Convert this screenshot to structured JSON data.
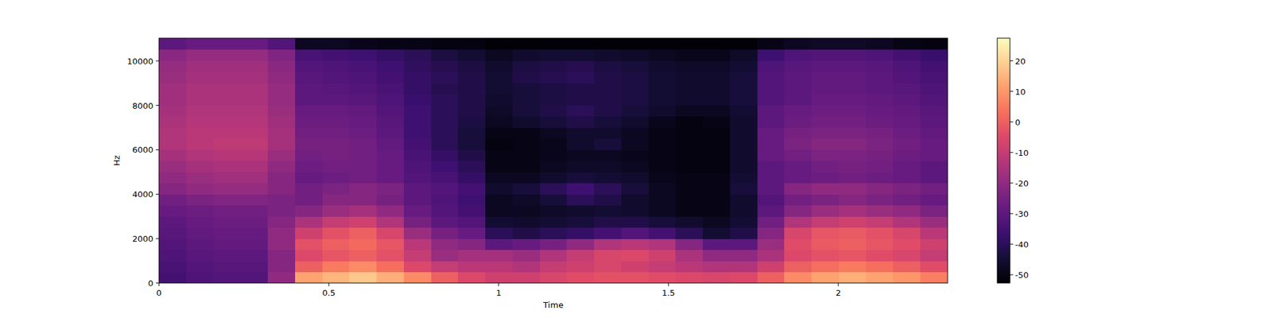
{
  "chart_data": {
    "type": "heatmap",
    "x_label": "Time",
    "y_label": "Hz",
    "xlim": [
      0,
      2.322
    ],
    "ylim": [
      0,
      11025
    ],
    "xticks": [
      0,
      0.5,
      1,
      1.5,
      2
    ],
    "yticks": [
      0,
      2000,
      4000,
      6000,
      8000,
      10000
    ],
    "color_range": [
      -52.7,
      27.4
    ],
    "color_ticks": [
      -50,
      -40,
      -30,
      -20,
      -10,
      0,
      10,
      20
    ],
    "cells": [
      [
        -35,
        -33,
        -32,
        -32,
        -20,
        12,
        15,
        18,
        14,
        8,
        0,
        -5,
        -8,
        -8,
        -6,
        -4,
        -3,
        -3,
        -4,
        -5,
        -6,
        -5,
        0,
        8,
        12,
        14,
        12,
        10,
        6
      ],
      [
        -34,
        -32,
        -31,
        -31,
        -22,
        0,
        5,
        8,
        3,
        -5,
        -10,
        -12,
        -12,
        -14,
        -10,
        -8,
        -6,
        -8,
        -10,
        -12,
        -14,
        -14,
        -8,
        0,
        3,
        5,
        3,
        0,
        -4
      ],
      [
        -33,
        -31,
        -30,
        -30,
        -22,
        -5,
        -2,
        0,
        -3,
        -10,
        -18,
        -16,
        -16,
        -18,
        -14,
        -10,
        -6,
        -5,
        -8,
        -15,
        -20,
        -20,
        -15,
        -5,
        -3,
        -2,
        -4,
        -6,
        -10
      ],
      [
        -32,
        -30,
        -29,
        -29,
        -20,
        -3,
        0,
        2,
        -2,
        -12,
        -20,
        -22,
        -30,
        -28,
        -25,
        -20,
        -14,
        -12,
        -14,
        -22,
        -30,
        -30,
        -18,
        -4,
        -1,
        0,
        -2,
        -4,
        -8
      ],
      [
        -31,
        -29,
        -28,
        -28,
        -20,
        -8,
        -3,
        0,
        -6,
        -18,
        -25,
        -28,
        -40,
        -42,
        -40,
        -38,
        -35,
        -32,
        -35,
        -40,
        -45,
        -42,
        -22,
        -6,
        -2,
        -1,
        -3,
        -6,
        -12
      ],
      [
        -30,
        -28,
        -27,
        -27,
        -22,
        -15,
        -10,
        -8,
        -14,
        -25,
        -30,
        -32,
        -45,
        -46,
        -45,
        -44,
        -42,
        -42,
        -44,
        -46,
        -48,
        -45,
        -26,
        -14,
        -10,
        -8,
        -10,
        -14,
        -18
      ],
      [
        -28,
        -27,
        -26,
        -26,
        -24,
        -22,
        -18,
        -16,
        -20,
        -28,
        -32,
        -35,
        -48,
        -48,
        -47,
        -46,
        -45,
        -46,
        -48,
        -50,
        -50,
        -46,
        -30,
        -22,
        -18,
        -16,
        -18,
        -20,
        -24
      ],
      [
        -26,
        -24,
        -23,
        -23,
        -24,
        -26,
        -22,
        -22,
        -25,
        -30,
        -33,
        -36,
        -48,
        -47,
        -44,
        -40,
        -42,
        -46,
        -48,
        -50,
        -50,
        -46,
        -32,
        -26,
        -24,
        -22,
        -24,
        -26,
        -28
      ],
      [
        -22,
        -20,
        -19,
        -19,
        -22,
        -26,
        -24,
        -22,
        -24,
        -30,
        -32,
        -35,
        -46,
        -44,
        -40,
        -36,
        -40,
        -44,
        -48,
        -50,
        -50,
        -44,
        -30,
        -22,
        -20,
        -20,
        -22,
        -24,
        -26
      ],
      [
        -20,
        -18,
        -17,
        -17,
        -22,
        -28,
        -27,
        -26,
        -28,
        -32,
        -34,
        -38,
        -48,
        -48,
        -46,
        -44,
        -45,
        -46,
        -49,
        -50,
        -50,
        -45,
        -30,
        -28,
        -27,
        -26,
        -27,
        -28,
        -30
      ],
      [
        -18,
        -16,
        -15,
        -15,
        -20,
        -27,
        -26,
        -26,
        -28,
        -33,
        -36,
        -40,
        -50,
        -50,
        -48,
        -47,
        -47,
        -48,
        -50,
        -51,
        -51,
        -46,
        -30,
        -28,
        -26,
        -25,
        -26,
        -28,
        -30
      ],
      [
        -16,
        -14,
        -13,
        -13,
        -18,
        -26,
        -25,
        -26,
        -28,
        -34,
        -38,
        -42,
        -50,
        -50,
        -49,
        -48,
        -48,
        -49,
        -50,
        -51,
        -51,
        -46,
        -28,
        -26,
        -24,
        -24,
        -25,
        -27,
        -28
      ],
      [
        -14,
        -12,
        -11,
        -11,
        -16,
        -25,
        -25,
        -26,
        -29,
        -35,
        -40,
        -44,
        -51,
        -50,
        -49,
        -46,
        -44,
        -48,
        -50,
        -51,
        -51,
        -46,
        -28,
        -24,
        -22,
        -22,
        -24,
        -26,
        -28
      ],
      [
        -14,
        -12,
        -12,
        -12,
        -16,
        -26,
        -26,
        -27,
        -30,
        -36,
        -40,
        -44,
        -50,
        -50,
        -48,
        -46,
        -46,
        -48,
        -50,
        -51,
        -51,
        -46,
        -28,
        -25,
        -24,
        -24,
        -25,
        -27,
        -29
      ],
      [
        -15,
        -13,
        -13,
        -13,
        -17,
        -27,
        -27,
        -28,
        -31,
        -36,
        -40,
        -43,
        -48,
        -46,
        -44,
        -42,
        -44,
        -46,
        -49,
        -51,
        -50,
        -46,
        -30,
        -27,
        -26,
        -26,
        -27,
        -28,
        -30
      ],
      [
        -16,
        -14,
        -14,
        -14,
        -18,
        -28,
        -28,
        -29,
        -32,
        -36,
        -40,
        -42,
        -47,
        -44,
        -42,
        -40,
        -42,
        -44,
        -46,
        -48,
        -48,
        -45,
        -30,
        -28,
        -27,
        -27,
        -28,
        -29,
        -31
      ],
      [
        -17,
        -15,
        -15,
        -15,
        -19,
        -30,
        -30,
        -31,
        -33,
        -37,
        -40,
        -42,
        -46,
        -44,
        -43,
        -42,
        -42,
        -43,
        -45,
        -46,
        -46,
        -44,
        -32,
        -30,
        -28,
        -28,
        -29,
        -30,
        -32
      ],
      [
        -17,
        -15,
        -15,
        -15,
        -19,
        -30,
        -31,
        -32,
        -34,
        -38,
        -41,
        -42,
        -45,
        -44,
        -43,
        -42,
        -42,
        -43,
        -45,
        -46,
        -46,
        -44,
        -32,
        -30,
        -29,
        -29,
        -30,
        -31,
        -33
      ],
      [
        -18,
        -16,
        -16,
        -16,
        -20,
        -31,
        -32,
        -33,
        -35,
        -38,
        -40,
        -42,
        -45,
        -42,
        -41,
        -40,
        -42,
        -43,
        -45,
        -46,
        -46,
        -44,
        -32,
        -30,
        -29,
        -29,
        -30,
        -32,
        -34
      ],
      [
        -19,
        -17,
        -17,
        -17,
        -21,
        -32,
        -33,
        -34,
        -36,
        -39,
        -41,
        -43,
        -46,
        -43,
        -42,
        -41,
        -43,
        -44,
        -46,
        -47,
        -47,
        -45,
        -33,
        -31,
        -30,
        -30,
        -31,
        -33,
        -35
      ],
      [
        -21,
        -19,
        -19,
        -19,
        -23,
        -34,
        -35,
        -36,
        -38,
        -40,
        -43,
        -45,
        -48,
        -46,
        -45,
        -45,
        -46,
        -47,
        -48,
        -49,
        -49,
        -47,
        -36,
        -33,
        -32,
        -32,
        -33,
        -35,
        -37
      ],
      [
        -30,
        -28,
        -28,
        -28,
        -32,
        -48,
        -48,
        -49,
        -50,
        -50,
        -51,
        -51,
        -52,
        -52,
        -52,
        -52,
        -52,
        -52,
        -52,
        -52,
        -52,
        -52,
        -50,
        -48,
        -47,
        -47,
        -48,
        -50,
        -51
      ]
    ]
  }
}
